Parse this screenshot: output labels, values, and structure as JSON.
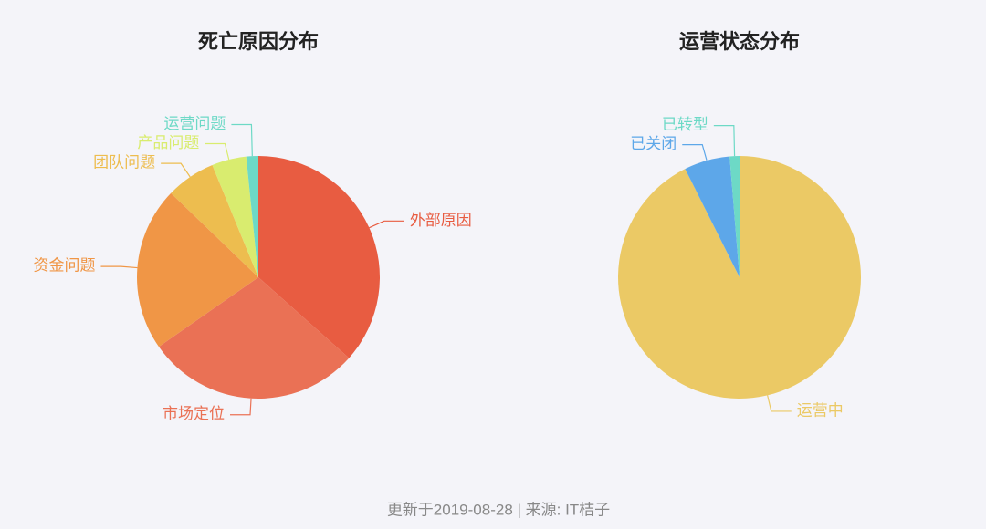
{
  "chart_data": [
    {
      "type": "pie",
      "title": "死亡原因分布",
      "categories": [
        "外部原因",
        "市场定位",
        "资金问题",
        "团队问题",
        "产品问题",
        "运营问题"
      ],
      "values": [
        36.6,
        28.7,
        21.9,
        6.6,
        4.6,
        1.6
      ],
      "colors": [
        "#e85c41",
        "#ea7155",
        "#f09646",
        "#edbd4f",
        "#d9ec6f",
        "#6dd9c6"
      ]
    },
    {
      "type": "pie",
      "title": "运营状态分布",
      "categories": [
        "运营中",
        "已关闭",
        "已转型"
      ],
      "values": [
        92.6,
        6.1,
        1.3
      ],
      "colors": [
        "#ebc965",
        "#5da7e9",
        "#6dd9c6"
      ]
    }
  ],
  "footer": "更新于2019-08-28 | 来源: IT桔子"
}
